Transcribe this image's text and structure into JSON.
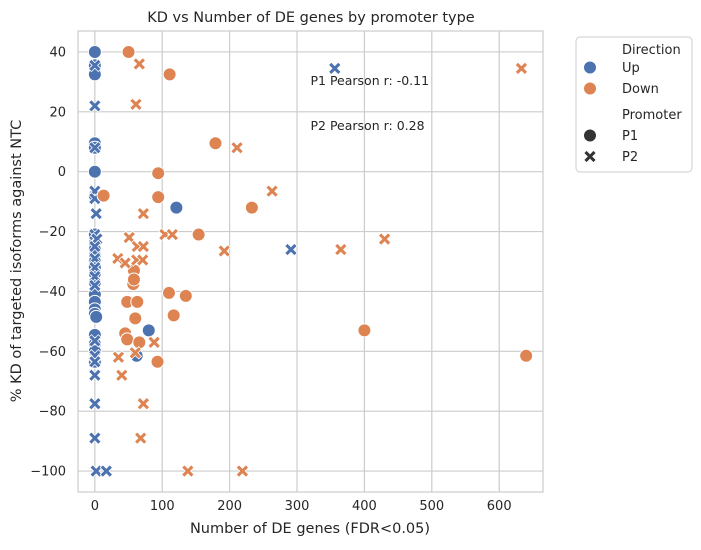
{
  "chart_data": {
    "type": "scatter",
    "title": "KD vs Number of DE genes by promoter type",
    "xlabel": "Number of DE genes (FDR<0.05)",
    "ylabel": "% KD of targeted isoforms against NTC",
    "xlim": [
      -25,
      665
    ],
    "ylim": [
      -107,
      47
    ],
    "xticks": [
      0,
      100,
      200,
      300,
      400,
      500,
      600
    ],
    "yticks": [
      -100,
      -80,
      -60,
      -40,
      -20,
      0,
      20,
      40
    ],
    "grid": true,
    "colors": {
      "Up": "#4c72b0",
      "Down": "#dd8452"
    },
    "legend": {
      "placement": "outside-top-right",
      "hue_title": "Direction",
      "hue_entries": [
        "Up",
        "Down"
      ],
      "style_title": "Promoter",
      "style_entries": [
        "P1",
        "P2"
      ]
    },
    "annotations": [
      {
        "text": "P1 Pearson r: -0.11",
        "x": 320,
        "y": 29
      },
      {
        "text": "P2 Pearson r: 0.28",
        "x": 320,
        "y": 14
      }
    ],
    "points": [
      {
        "x": 0,
        "y": 40,
        "direction": "Up",
        "promoter": "P1"
      },
      {
        "x": 0,
        "y": 35.5,
        "direction": "Up",
        "promoter": "P1"
      },
      {
        "x": 0,
        "y": 32.5,
        "direction": "Up",
        "promoter": "P1"
      },
      {
        "x": 0,
        "y": 9.5,
        "direction": "Up",
        "promoter": "P1"
      },
      {
        "x": 0,
        "y": 8,
        "direction": "Up",
        "promoter": "P1"
      },
      {
        "x": 0,
        "y": 0,
        "direction": "Up",
        "promoter": "P1"
      },
      {
        "x": 0,
        "y": -8,
        "direction": "Up",
        "promoter": "P1"
      },
      {
        "x": 0,
        "y": -21,
        "direction": "Up",
        "promoter": "P1"
      },
      {
        "x": 0,
        "y": -24,
        "direction": "Up",
        "promoter": "P1"
      },
      {
        "x": 0,
        "y": -26,
        "direction": "Up",
        "promoter": "P1"
      },
      {
        "x": 0,
        "y": -28,
        "direction": "Up",
        "promoter": "P1"
      },
      {
        "x": 0,
        "y": -30,
        "direction": "Up",
        "promoter": "P1"
      },
      {
        "x": 0,
        "y": -32,
        "direction": "Up",
        "promoter": "P1"
      },
      {
        "x": 0,
        "y": -34,
        "direction": "Up",
        "promoter": "P1"
      },
      {
        "x": 0,
        "y": -37,
        "direction": "Up",
        "promoter": "P1"
      },
      {
        "x": 0,
        "y": -41,
        "direction": "Up",
        "promoter": "P1"
      },
      {
        "x": 0,
        "y": -43.5,
        "direction": "Up",
        "promoter": "P1"
      },
      {
        "x": 0,
        "y": -46,
        "direction": "Up",
        "promoter": "P1"
      },
      {
        "x": 0,
        "y": -47.5,
        "direction": "Up",
        "promoter": "P1"
      },
      {
        "x": 0,
        "y": -54.5,
        "direction": "Up",
        "promoter": "P1"
      },
      {
        "x": 0,
        "y": -57.5,
        "direction": "Up",
        "promoter": "P1"
      },
      {
        "x": 0,
        "y": -60,
        "direction": "Up",
        "promoter": "P1"
      },
      {
        "x": 0,
        "y": -63.5,
        "direction": "Up",
        "promoter": "P1"
      },
      {
        "x": 2,
        "y": -48.5,
        "direction": "Up",
        "promoter": "P1"
      },
      {
        "x": 62,
        "y": -61.5,
        "direction": "Up",
        "promoter": "P1"
      },
      {
        "x": 80,
        "y": -53,
        "direction": "Up",
        "promoter": "P1"
      },
      {
        "x": 121,
        "y": -12,
        "direction": "Up",
        "promoter": "P1"
      },
      {
        "x": 0,
        "y": 35.5,
        "direction": "Up",
        "promoter": "P2"
      },
      {
        "x": 0,
        "y": 22,
        "direction": "Up",
        "promoter": "P2"
      },
      {
        "x": 0,
        "y": 8,
        "direction": "Up",
        "promoter": "P2"
      },
      {
        "x": 0,
        "y": -6.5,
        "direction": "Up",
        "promoter": "P2"
      },
      {
        "x": 0,
        "y": -9,
        "direction": "Up",
        "promoter": "P2"
      },
      {
        "x": 2,
        "y": -14,
        "direction": "Up",
        "promoter": "P2"
      },
      {
        "x": 0,
        "y": -21,
        "direction": "Up",
        "promoter": "P2"
      },
      {
        "x": 3,
        "y": -22.5,
        "direction": "Up",
        "promoter": "P2"
      },
      {
        "x": 0,
        "y": -25,
        "direction": "Up",
        "promoter": "P2"
      },
      {
        "x": 0,
        "y": -29,
        "direction": "Up",
        "promoter": "P2"
      },
      {
        "x": 0,
        "y": -32,
        "direction": "Up",
        "promoter": "P2"
      },
      {
        "x": 0,
        "y": -35,
        "direction": "Up",
        "promoter": "P2"
      },
      {
        "x": 0,
        "y": -38,
        "direction": "Up",
        "promoter": "P2"
      },
      {
        "x": 0,
        "y": -56.5,
        "direction": "Up",
        "promoter": "P2"
      },
      {
        "x": 0,
        "y": -61.5,
        "direction": "Up",
        "promoter": "P2"
      },
      {
        "x": 0,
        "y": -63.5,
        "direction": "Up",
        "promoter": "P2"
      },
      {
        "x": 0,
        "y": -68,
        "direction": "Up",
        "promoter": "P2"
      },
      {
        "x": 0,
        "y": -77.5,
        "direction": "Up",
        "promoter": "P2"
      },
      {
        "x": 0,
        "y": -89,
        "direction": "Up",
        "promoter": "P2"
      },
      {
        "x": 2,
        "y": -100,
        "direction": "Up",
        "promoter": "P2"
      },
      {
        "x": 17,
        "y": -100,
        "direction": "Up",
        "promoter": "P2"
      },
      {
        "x": 356,
        "y": 34.5,
        "direction": "Up",
        "promoter": "P2"
      },
      {
        "x": 291,
        "y": -26,
        "direction": "Up",
        "promoter": "P2"
      },
      {
        "x": 50,
        "y": 40,
        "direction": "Down",
        "promoter": "P1"
      },
      {
        "x": 111,
        "y": 32.5,
        "direction": "Down",
        "promoter": "P1"
      },
      {
        "x": 94,
        "y": -0.5,
        "direction": "Down",
        "promoter": "P1"
      },
      {
        "x": 179,
        "y": 9.5,
        "direction": "Down",
        "promoter": "P1"
      },
      {
        "x": 13,
        "y": -8,
        "direction": "Down",
        "promoter": "P1"
      },
      {
        "x": 94,
        "y": -8.5,
        "direction": "Down",
        "promoter": "P1"
      },
      {
        "x": 233,
        "y": -12,
        "direction": "Down",
        "promoter": "P1"
      },
      {
        "x": 154,
        "y": -21,
        "direction": "Down",
        "promoter": "P1"
      },
      {
        "x": 58,
        "y": -33,
        "direction": "Down",
        "promoter": "P1"
      },
      {
        "x": 57,
        "y": -37.5,
        "direction": "Down",
        "promoter": "P1"
      },
      {
        "x": 58,
        "y": -36,
        "direction": "Down",
        "promoter": "P1"
      },
      {
        "x": 48,
        "y": -43.5,
        "direction": "Down",
        "promoter": "P1"
      },
      {
        "x": 63,
        "y": -43.5,
        "direction": "Down",
        "promoter": "P1"
      },
      {
        "x": 110,
        "y": -40.5,
        "direction": "Down",
        "promoter": "P1"
      },
      {
        "x": 135,
        "y": -41.5,
        "direction": "Down",
        "promoter": "P1"
      },
      {
        "x": 117,
        "y": -48,
        "direction": "Down",
        "promoter": "P1"
      },
      {
        "x": 60,
        "y": -49,
        "direction": "Down",
        "promoter": "P1"
      },
      {
        "x": 45,
        "y": -54,
        "direction": "Down",
        "promoter": "P1"
      },
      {
        "x": 48,
        "y": -56,
        "direction": "Down",
        "promoter": "P1"
      },
      {
        "x": 66,
        "y": -57,
        "direction": "Down",
        "promoter": "P1"
      },
      {
        "x": 93,
        "y": -63.5,
        "direction": "Down",
        "promoter": "P1"
      },
      {
        "x": 400,
        "y": -53,
        "direction": "Down",
        "promoter": "P1"
      },
      {
        "x": 640,
        "y": -61.5,
        "direction": "Down",
        "promoter": "P1"
      },
      {
        "x": 66,
        "y": 36,
        "direction": "Down",
        "promoter": "P2"
      },
      {
        "x": 61,
        "y": 22.5,
        "direction": "Down",
        "promoter": "P2"
      },
      {
        "x": 211,
        "y": 8,
        "direction": "Down",
        "promoter": "P2"
      },
      {
        "x": 263,
        "y": -6.5,
        "direction": "Down",
        "promoter": "P2"
      },
      {
        "x": 72,
        "y": -14,
        "direction": "Down",
        "promoter": "P2"
      },
      {
        "x": 104,
        "y": -21,
        "direction": "Down",
        "promoter": "P2"
      },
      {
        "x": 115,
        "y": -21,
        "direction": "Down",
        "promoter": "P2"
      },
      {
        "x": 51,
        "y": -22,
        "direction": "Down",
        "promoter": "P2"
      },
      {
        "x": 63,
        "y": -25,
        "direction": "Down",
        "promoter": "P2"
      },
      {
        "x": 72,
        "y": -25,
        "direction": "Down",
        "promoter": "P2"
      },
      {
        "x": 192,
        "y": -26.5,
        "direction": "Down",
        "promoter": "P2"
      },
      {
        "x": 365,
        "y": -26,
        "direction": "Down",
        "promoter": "P2"
      },
      {
        "x": 430,
        "y": -22.5,
        "direction": "Down",
        "promoter": "P2"
      },
      {
        "x": 34,
        "y": -29,
        "direction": "Down",
        "promoter": "P2"
      },
      {
        "x": 45,
        "y": -30.5,
        "direction": "Down",
        "promoter": "P2"
      },
      {
        "x": 62,
        "y": -29.5,
        "direction": "Down",
        "promoter": "P2"
      },
      {
        "x": 71,
        "y": -29.5,
        "direction": "Down",
        "promoter": "P2"
      },
      {
        "x": 88,
        "y": -57,
        "direction": "Down",
        "promoter": "P2"
      },
      {
        "x": 60,
        "y": -60.5,
        "direction": "Down",
        "promoter": "P2"
      },
      {
        "x": 35,
        "y": -62,
        "direction": "Down",
        "promoter": "P2"
      },
      {
        "x": 40,
        "y": -68,
        "direction": "Down",
        "promoter": "P2"
      },
      {
        "x": 72,
        "y": -77.5,
        "direction": "Down",
        "promoter": "P2"
      },
      {
        "x": 68,
        "y": -89,
        "direction": "Down",
        "promoter": "P2"
      },
      {
        "x": 138,
        "y": -100,
        "direction": "Down",
        "promoter": "P2"
      },
      {
        "x": 219,
        "y": -100,
        "direction": "Down",
        "promoter": "P2"
      },
      {
        "x": 633,
        "y": 34.5,
        "direction": "Down",
        "promoter": "P2"
      }
    ]
  }
}
